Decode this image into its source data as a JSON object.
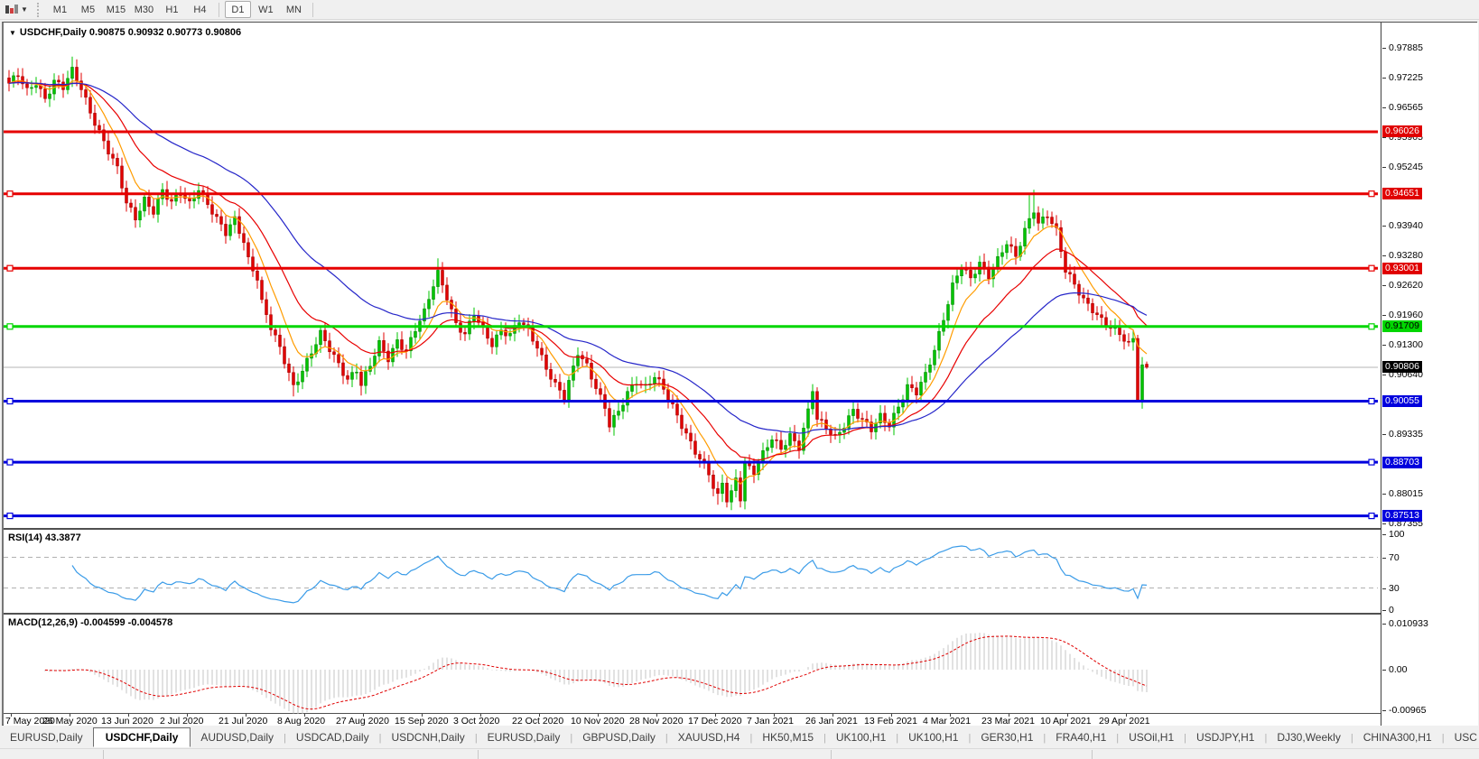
{
  "toolbar": {
    "icon": "chart-periods",
    "timeframes": [
      "M1",
      "M5",
      "M15",
      "M30",
      "H1",
      "H4",
      "D1",
      "W1",
      "MN"
    ],
    "active_timeframe": "D1"
  },
  "chart": {
    "symbol_title": "USDCHF,Daily",
    "ohlc_text": "0.90875 0.90932 0.90773 0.90806"
  },
  "colors": {
    "candle_up_fill": "#00c400",
    "candle_up_stroke": "#007d00",
    "candle_down_fill": "#e00000",
    "candle_down_stroke": "#9d0000",
    "ma_fast": "#ff9c00",
    "ma_mid": "#e80000",
    "ma_slow": "#2626c9",
    "hline_red": "#e60000",
    "hline_green": "#00d600",
    "hline_blue": "#0000dd",
    "current_price_line": "#b4b4b4",
    "rsi_line": "#3b9ce8",
    "rsi_level": "#b0b0b0",
    "macd_histogram": "#c4c4c4",
    "macd_signal": "#e00000",
    "label_red_bg": "#e00000",
    "label_green_bg": "#00d600",
    "label_blue_bg": "#0000dd",
    "label_black_bg": "#000000"
  },
  "price_axis": {
    "ticks": [
      "0.97885",
      "0.97225",
      "0.96565",
      "0.95905",
      "0.95245",
      "0.93940",
      "0.93280",
      "0.92620",
      "0.91960",
      "0.91300",
      "0.90640",
      "0.89335",
      "0.88015",
      "0.87355"
    ],
    "price_labels": [
      {
        "text": "0.96026",
        "bg": "#e00000",
        "fg": "#ffffff"
      },
      {
        "text": "0.94651",
        "bg": "#e00000",
        "fg": "#ffffff"
      },
      {
        "text": "0.93001",
        "bg": "#e00000",
        "fg": "#ffffff"
      },
      {
        "text": "0.91709",
        "bg": "#00d600",
        "fg": "#000000"
      },
      {
        "text": "0.90806",
        "bg": "#000000",
        "fg": "#ffffff"
      },
      {
        "text": "0.90055",
        "bg": "#0000dd",
        "fg": "#ffffff"
      },
      {
        "text": "0.88703",
        "bg": "#0000dd",
        "fg": "#ffffff"
      },
      {
        "text": "0.87513",
        "bg": "#0000dd",
        "fg": "#ffffff"
      }
    ]
  },
  "hlines": [
    {
      "price": 0.96026,
      "color": "#e60000",
      "width": 3,
      "handles": false
    },
    {
      "price": 0.94651,
      "color": "#e60000",
      "width": 3,
      "handles": true
    },
    {
      "price": 0.93001,
      "color": "#e60000",
      "width": 3,
      "handles": true
    },
    {
      "price": 0.91709,
      "color": "#00d600",
      "width": 3,
      "handles": true
    },
    {
      "price": 0.90055,
      "color": "#0000dd",
      "width": 3,
      "handles": true
    },
    {
      "price": 0.88703,
      "color": "#0000dd",
      "width": 3,
      "handles": true
    },
    {
      "price": 0.87513,
      "color": "#0000dd",
      "width": 3,
      "handles": true
    }
  ],
  "current_price": {
    "price": 0.90806,
    "text": "0.90806"
  },
  "rsi": {
    "label": "RSI(14) 43.3877",
    "period": 14,
    "value": 43.3877,
    "levels": [
      70,
      30
    ],
    "axis_ticks": [
      "100",
      "70",
      "30",
      "0"
    ]
  },
  "macd": {
    "label": "MACD(12,26,9) -0.004599 -0.004578",
    "fast": 12,
    "slow": 26,
    "signal": 9,
    "macd_value": -0.004599,
    "signal_value": -0.004578,
    "axis_ticks": [
      "0.010933",
      "0.00",
      "-0.00965"
    ]
  },
  "date_axis": [
    "7 May 2020",
    "26 May 2020",
    "13 Jun 2020",
    "2 Jul 2020",
    "21 Jul 2020",
    "8 Aug 2020",
    "27 Aug 2020",
    "15 Sep 2020",
    "3 Oct 2020",
    "22 Oct 2020",
    "10 Nov 2020",
    "28 Nov 2020",
    "17 Dec 2020",
    "7 Jan 2021",
    "26 Jan 2021",
    "13 Feb 2021",
    "4 Mar 2021",
    "23 Mar 2021",
    "10 Apr 2021",
    "29 Apr 2021"
  ],
  "chart_data": {
    "type": "candlestick",
    "symbol": "USDCHF",
    "timeframe": "Daily",
    "bar_count": 253,
    "bars_per_x_label": 13,
    "visible_price_range": [
      0.8727,
      0.9841
    ],
    "last_ohlc": {
      "open": 0.90875,
      "high": 0.90932,
      "low": 0.90773,
      "close": 0.90806
    },
    "close_anchors": [
      [
        0,
        0.971
      ],
      [
        2,
        0.9726
      ],
      [
        4,
        0.969
      ],
      [
        6,
        0.9712
      ],
      [
        8,
        0.9678
      ],
      [
        10,
        0.9716
      ],
      [
        12,
        0.97
      ],
      [
        14,
        0.9735
      ],
      [
        16,
        0.9698
      ],
      [
        18,
        0.9648
      ],
      [
        20,
        0.9605
      ],
      [
        22,
        0.956
      ],
      [
        24,
        0.9518
      ],
      [
        26,
        0.9442
      ],
      [
        28,
        0.9412
      ],
      [
        30,
        0.9455
      ],
      [
        32,
        0.9428
      ],
      [
        34,
        0.947
      ],
      [
        36,
        0.9442
      ],
      [
        38,
        0.9468
      ],
      [
        40,
        0.9445
      ],
      [
        42,
        0.948
      ],
      [
        44,
        0.9442
      ],
      [
        46,
        0.9406
      ],
      [
        48,
        0.9376
      ],
      [
        50,
        0.941
      ],
      [
        52,
        0.9362
      ],
      [
        53,
        0.9322
      ],
      [
        55,
        0.9278
      ],
      [
        56,
        0.9222
      ],
      [
        58,
        0.9166
      ],
      [
        60,
        0.9122
      ],
      [
        62,
        0.907
      ],
      [
        63,
        0.904
      ],
      [
        65,
        0.9076
      ],
      [
        67,
        0.9112
      ],
      [
        69,
        0.9152
      ],
      [
        71,
        0.912
      ],
      [
        73,
        0.909
      ],
      [
        75,
        0.9056
      ],
      [
        77,
        0.9076
      ],
      [
        78,
        0.904
      ],
      [
        80,
        0.9082
      ],
      [
        82,
        0.9132
      ],
      [
        84,
        0.9102
      ],
      [
        86,
        0.9142
      ],
      [
        88,
        0.9116
      ],
      [
        90,
        0.9162
      ],
      [
        92,
        0.92
      ],
      [
        94,
        0.9265
      ],
      [
        95,
        0.9292
      ],
      [
        97,
        0.924
      ],
      [
        99,
        0.9176
      ],
      [
        101,
        0.915
      ],
      [
        103,
        0.9196
      ],
      [
        105,
        0.9165
      ],
      [
        107,
        0.9135
      ],
      [
        109,
        0.9165
      ],
      [
        111,
        0.915
      ],
      [
        113,
        0.9182
      ],
      [
        115,
        0.916
      ],
      [
        117,
        0.9128
      ],
      [
        119,
        0.9082
      ],
      [
        121,
        0.9042
      ],
      [
        123,
        0.9012
      ],
      [
        125,
        0.9076
      ],
      [
        126,
        0.9112
      ],
      [
        128,
        0.9086
      ],
      [
        130,
        0.904
      ],
      [
        132,
        0.8992
      ],
      [
        133,
        0.8952
      ],
      [
        135,
        0.8978
      ],
      [
        137,
        0.9022
      ],
      [
        139,
        0.9052
      ],
      [
        141,
        0.904
      ],
      [
        143,
        0.9062
      ],
      [
        145,
        0.903
      ],
      [
        147,
        0.899
      ],
      [
        149,
        0.8952
      ],
      [
        151,
        0.8916
      ],
      [
        153,
        0.888
      ],
      [
        155,
        0.8845
      ],
      [
        156,
        0.8812
      ],
      [
        157,
        0.879
      ],
      [
        158,
        0.8822
      ],
      [
        159,
        0.8786
      ],
      [
        160,
        0.8802
      ],
      [
        161,
        0.8836
      ],
      [
        162,
        0.8795
      ],
      [
        163,
        0.887
      ],
      [
        165,
        0.885
      ],
      [
        167,
        0.8886
      ],
      [
        169,
        0.892
      ],
      [
        171,
        0.89
      ],
      [
        173,
        0.8932
      ],
      [
        175,
        0.8906
      ],
      [
        177,
        0.8982
      ],
      [
        178,
        0.903
      ],
      [
        179,
        0.8962
      ],
      [
        181,
        0.8946
      ],
      [
        183,
        0.8926
      ],
      [
        185,
        0.8956
      ],
      [
        187,
        0.8986
      ],
      [
        189,
        0.896
      ],
      [
        191,
        0.894
      ],
      [
        193,
        0.8972
      ],
      [
        195,
        0.8956
      ],
      [
        197,
        0.8996
      ],
      [
        199,
        0.9036
      ],
      [
        201,
        0.9022
      ],
      [
        203,
        0.9062
      ],
      [
        205,
        0.9122
      ],
      [
        207,
        0.9192
      ],
      [
        209,
        0.9262
      ],
      [
        211,
        0.9302
      ],
      [
        213,
        0.9272
      ],
      [
        215,
        0.9312
      ],
      [
        217,
        0.9286
      ],
      [
        219,
        0.9322
      ],
      [
        221,
        0.9356
      ],
      [
        223,
        0.9322
      ],
      [
        225,
        0.9382
      ],
      [
        227,
        0.9432
      ],
      [
        228,
        0.9402
      ],
      [
        230,
        0.9422
      ],
      [
        232,
        0.9382
      ],
      [
        234,
        0.9292
      ],
      [
        236,
        0.9262
      ],
      [
        238,
        0.9232
      ],
      [
        240,
        0.9212
      ],
      [
        242,
        0.9186
      ],
      [
        244,
        0.9166
      ],
      [
        246,
        0.9152
      ],
      [
        248,
        0.913
      ],
      [
        249,
        0.9146
      ],
      [
        250,
        0.9016
      ],
      [
        251,
        0.9086
      ],
      [
        252,
        0.90806
      ]
    ],
    "high_overrides": {
      "14": 0.9769,
      "95": 0.9322,
      "226": 0.9462,
      "227": 0.9474
    },
    "low_overrides": {
      "63": 0.9016,
      "78": 0.9018,
      "157": 0.8776,
      "159": 0.877,
      "250": 0.9006
    },
    "moving_averages": [
      {
        "name": "fast",
        "method": "EMA",
        "period": 8,
        "color": "#ff9c00"
      },
      {
        "name": "mid",
        "method": "EMA",
        "period": 20,
        "color": "#e80000"
      },
      {
        "name": "slow",
        "method": "EMA",
        "period": 45,
        "color": "#2626c9"
      }
    ]
  },
  "tabs": {
    "items": [
      {
        "label": "EURUSD,Daily",
        "active": false
      },
      {
        "label": "USDCHF,Daily",
        "active": true
      },
      {
        "label": "AUDUSD,Daily",
        "active": false
      },
      {
        "label": "USDCAD,Daily",
        "active": false
      },
      {
        "label": "USDCNH,Daily",
        "active": false
      },
      {
        "label": "EURUSD,Daily",
        "active": false
      },
      {
        "label": "GBPUSD,Daily",
        "active": false
      },
      {
        "label": "XAUUSD,H4",
        "active": false
      },
      {
        "label": "HK50,M15",
        "active": false
      },
      {
        "label": "UK100,H1",
        "active": false
      },
      {
        "label": "UK100,H1",
        "active": false
      },
      {
        "label": "GER30,H1",
        "active": false
      },
      {
        "label": "FRA40,H1",
        "active": false
      },
      {
        "label": "USOil,H1",
        "active": false
      },
      {
        "label": "USDJPY,H1",
        "active": false
      },
      {
        "label": "DJ30,Weekly",
        "active": false
      },
      {
        "label": "CHINA300,H1",
        "active": false
      },
      {
        "label": "USC",
        "active": false,
        "truncated": true
      }
    ],
    "scroll_left_arrow": "◄",
    "scroll_right_arrow": "►"
  }
}
